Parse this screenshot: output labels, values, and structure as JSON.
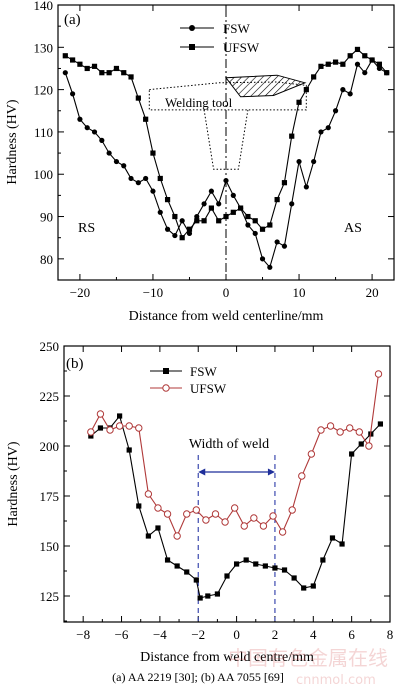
{
  "caption": "(a) AA 2219 [30]; (b) AA 7055 [69]",
  "watermark": {
    "line1": "中国有色金属在线",
    "line2": "cnnmol.com"
  },
  "chart_data": [
    {
      "type": "line",
      "panel_label": "(a)",
      "xlabel": "Distance from weld centerline/mm",
      "ylabel": "Hardness (HV)",
      "xlim": [
        -23,
        23
      ],
      "ylim": [
        75,
        140
      ],
      "xticks": [
        -20,
        -10,
        0,
        10,
        20
      ],
      "xtick_labels": [
        "−20",
        "−10",
        "0",
        "10",
        "20"
      ],
      "yticks": [
        80,
        90,
        100,
        110,
        120,
        130,
        140
      ],
      "yminor_step": 5,
      "legend_position": "top-center",
      "centerline": 0,
      "annotations": [
        {
          "text": "RS",
          "x": -19.5,
          "y": 88
        },
        {
          "text": "AS",
          "x": 17.5,
          "y": 88
        },
        {
          "text": "Welding tool",
          "x": -8,
          "y": 116
        }
      ],
      "tool_shape": {
        "shoulder": [
          [
            -10.5,
            120
          ],
          [
            -1,
            121.6
          ],
          [
            7,
            121.8
          ],
          [
            11,
            121
          ],
          [
            11,
            115.2
          ],
          [
            -10.5,
            115.2
          ]
        ],
        "pin": [
          [
            -3,
            115.2
          ],
          [
            -1.7,
            101.2
          ],
          [
            1.7,
            101.2
          ],
          [
            3,
            115.2
          ]
        ],
        "hatch": [
          [
            0,
            122.8
          ],
          [
            7,
            123.4
          ],
          [
            10.8,
            121.6
          ],
          [
            6.5,
            118.6
          ],
          [
            2,
            118.3
          ]
        ]
      },
      "series": [
        {
          "name": "FSW",
          "marker": "circle",
          "color": "#000000",
          "x": [
            -22,
            -21,
            -20,
            -19,
            -18,
            -17,
            -16,
            -15,
            -14,
            -13,
            -12,
            -11,
            -10,
            -9,
            -8,
            -7,
            -6,
            -5,
            -4,
            -3,
            -2,
            -1,
            0,
            1,
            2,
            3,
            4,
            5,
            6,
            7,
            8,
            9,
            10,
            11,
            12,
            13,
            14,
            15,
            16,
            17,
            18,
            19,
            20,
            21,
            22
          ],
          "y": [
            124,
            119,
            113,
            111,
            110,
            108,
            105,
            103,
            102,
            99,
            98,
            99,
            96,
            91,
            87,
            85.5,
            89,
            86,
            90,
            93,
            96,
            93,
            98.5,
            95,
            92,
            88,
            86,
            80,
            78,
            84,
            83,
            93,
            103,
            97,
            103,
            110,
            111,
            115,
            120,
            119,
            126,
            124,
            127,
            125,
            124
          ]
        },
        {
          "name": "UFSW",
          "marker": "square",
          "color": "#000000",
          "x": [
            -22,
            -21,
            -20,
            -19,
            -18,
            -17,
            -16,
            -15,
            -14,
            -13,
            -12,
            -11,
            -10,
            -9,
            -8,
            -7,
            -6,
            -5,
            -4,
            -3,
            -2,
            -1,
            0,
            1,
            2,
            3,
            4,
            5,
            6,
            7,
            8,
            9,
            10,
            11,
            12,
            13,
            14,
            15,
            16,
            17,
            18,
            19,
            20,
            21,
            22
          ],
          "y": [
            128,
            127,
            126,
            125,
            125.5,
            124,
            124,
            125,
            124,
            123,
            118,
            113,
            105,
            99,
            94,
            90,
            85,
            87,
            89,
            89,
            92,
            89,
            90,
            91,
            92,
            90,
            89,
            87,
            88,
            94,
            98,
            109,
            117,
            120,
            123,
            125.5,
            126,
            126.5,
            126,
            128,
            129.5,
            128,
            127,
            126,
            124
          ]
        }
      ]
    },
    {
      "type": "line",
      "panel_label": "(b)",
      "xlabel": "Distance from weld centre/mm",
      "ylabel": "Hardness (HV)",
      "xlim": [
        -9,
        8
      ],
      "ylim": [
        112,
        250
      ],
      "xticks": [
        -8,
        -6,
        -4,
        -2,
        0,
        2,
        4,
        6,
        8
      ],
      "xtick_labels": [
        "−8",
        "−6",
        "−4",
        "−2",
        "0",
        "2",
        "4",
        "6",
        "8"
      ],
      "yticks": [
        125,
        150,
        175,
        200,
        225,
        250
      ],
      "yminor_step": 12.5,
      "legend_position": "top-left",
      "width_of_weld": {
        "label": "Width of weld",
        "from": -2,
        "to": 2,
        "y": 187
      },
      "series": [
        {
          "name": "FSW",
          "marker": "square",
          "color": "#000000",
          "x": [
            -7.6,
            -7.1,
            -6.6,
            -6.1,
            -5.6,
            -5.1,
            -4.6,
            -4.1,
            -3.6,
            -3.1,
            -2.6,
            -2.1,
            -1.9,
            -1.5,
            -1.0,
            -0.5,
            0,
            0.5,
            1.0,
            1.5,
            2.0,
            2.5,
            3.0,
            3.5,
            4.0,
            4.5,
            5.0,
            5.5,
            6.0,
            6.5,
            7.0,
            7.5
          ],
          "y": [
            205,
            209,
            209,
            215,
            198,
            170,
            155,
            159,
            143,
            140,
            137,
            133,
            124,
            125,
            126,
            135,
            141,
            143,
            141,
            140,
            139,
            138,
            134,
            129,
            130,
            143,
            154,
            151,
            196,
            201,
            206,
            211
          ]
        },
        {
          "name": "UFSW",
          "marker": "circle-open",
          "color": "#b03a3a",
          "x": [
            -7.6,
            -7.1,
            -6.6,
            -6.1,
            -5.6,
            -5.1,
            -4.6,
            -4.1,
            -3.6,
            -3.1,
            -2.6,
            -2.1,
            -1.6,
            -1.1,
            -0.6,
            -0.1,
            0.4,
            0.9,
            1.4,
            1.9,
            2.4,
            2.9,
            3.4,
            3.9,
            4.4,
            4.9,
            5.4,
            5.9,
            6.4,
            6.9,
            7.4
          ],
          "y": [
            207,
            216,
            208,
            210,
            210,
            209,
            176,
            169,
            166,
            155,
            166,
            168,
            163,
            166,
            162,
            169,
            160,
            164,
            160,
            165,
            157,
            168,
            185,
            196,
            208,
            210,
            207,
            209,
            207,
            200,
            236
          ]
        }
      ]
    }
  ]
}
